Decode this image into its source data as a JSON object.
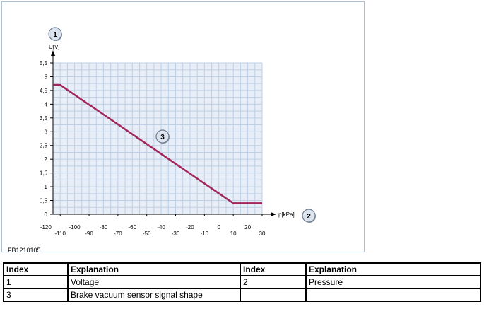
{
  "figure": {
    "id_label": "FB1210105"
  },
  "chart_data": {
    "type": "line",
    "series": [
      {
        "x": [
          -115,
          -110,
          10,
          30
        ],
        "y": [
          4.7,
          4.7,
          0.4,
          0.4
        ],
        "color": "#a3265a"
      }
    ],
    "xlabel": "p[kPa]",
    "ylabel": "U[V]",
    "xlim": [
      -115,
      30
    ],
    "ylim": [
      0,
      5.5
    ],
    "x_ticks_upper": [
      "-120",
      "-100",
      "-80",
      "-60",
      "-40",
      "-20",
      "0",
      "20"
    ],
    "x_ticks_lower": [
      "-110",
      "-90",
      "-70",
      "-50",
      "-30",
      "-10",
      "10",
      "30"
    ],
    "x_ticks_upper_values": [
      -120,
      -100,
      -80,
      -60,
      -40,
      -20,
      0,
      20
    ],
    "x_ticks_lower_values": [
      -110,
      -90,
      -70,
      -50,
      -30,
      -10,
      10,
      30
    ],
    "y_ticks": [
      "0",
      "0,5",
      "1",
      "1,5",
      "2",
      "2,5",
      "3",
      "3,5",
      "4",
      "4,5",
      "5",
      "5,5"
    ],
    "y_tick_values": [
      0,
      0.5,
      1,
      1.5,
      2,
      2.5,
      3,
      3.5,
      4,
      4.5,
      5,
      5.5
    ],
    "grid": true,
    "grid_color": "#bfd0e6",
    "plot_background": "#e8eef7",
    "callouts": [
      "1",
      "2",
      "3"
    ]
  },
  "legend_table": {
    "headers": [
      "Index",
      "Explanation",
      "Index",
      "Explanation"
    ],
    "rows": [
      [
        "1",
        "Voltage",
        "2",
        "Pressure"
      ],
      [
        "3",
        "Brake vacuum sensor signal shape",
        "",
        ""
      ]
    ]
  }
}
